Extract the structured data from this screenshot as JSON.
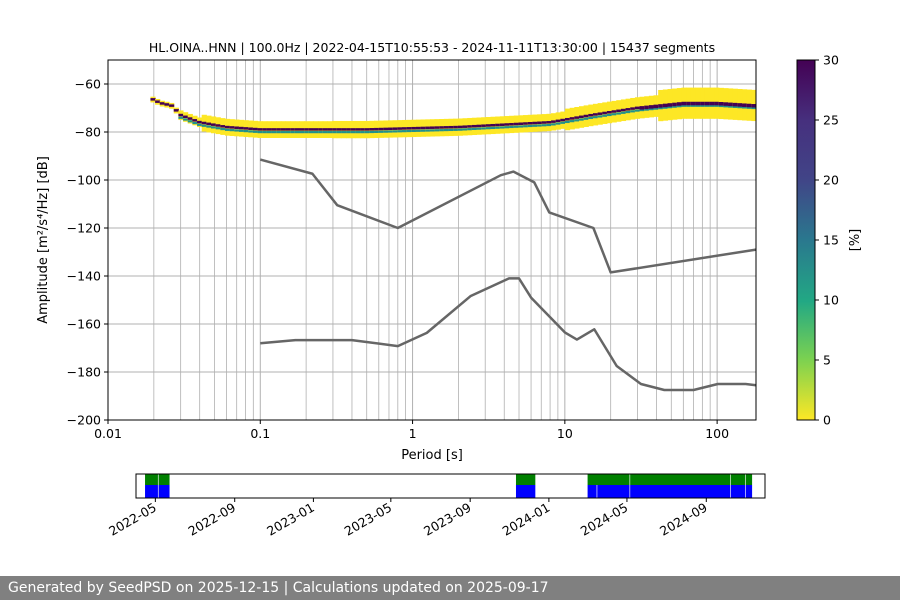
{
  "chart_data": [
    {
      "type": "heatmap",
      "title": "HL.OINA..HNN | 100.0Hz | 2022-04-15T10:55:53 - 2024-11-11T13:30:00 | 15437 segments",
      "xlabel": "Period [s]",
      "ylabel": "Amplitude [m²/s⁴/Hz] [dB]",
      "x_scale": "log",
      "xlim": [
        0.01,
        180
      ],
      "ylim": [
        -200,
        -50
      ],
      "x_tick_labels": [
        "0.01",
        "0.1",
        "1",
        "10",
        "100"
      ],
      "y_ticks": [
        -60,
        -80,
        -100,
        -120,
        -140,
        -160,
        -180,
        -200
      ],
      "y_tick_labels": [
        "−60",
        "−80",
        "−100",
        "−120",
        "−140",
        "−160",
        "−180",
        "−200"
      ],
      "grid": true,
      "colorbar": {
        "label": "[%]",
        "range": [
          0,
          30
        ],
        "ticks": [
          0,
          5,
          10,
          15,
          20,
          25,
          30
        ],
        "colormap": "viridis_r"
      },
      "psd_mode_curve": [
        {
          "period": 0.019,
          "db": -66
        },
        {
          "period": 0.022,
          "db": -68
        },
        {
          "period": 0.026,
          "db": -69
        },
        {
          "period": 0.03,
          "db": -73
        },
        {
          "period": 0.04,
          "db": -76
        },
        {
          "period": 0.06,
          "db": -78
        },
        {
          "period": 0.1,
          "db": -79
        },
        {
          "period": 0.2,
          "db": -79
        },
        {
          "period": 0.5,
          "db": -79
        },
        {
          "period": 1,
          "db": -78.5
        },
        {
          "period": 2,
          "db": -78
        },
        {
          "period": 4,
          "db": -77
        },
        {
          "period": 8,
          "db": -76
        },
        {
          "period": 15,
          "db": -73
        },
        {
          "period": 30,
          "db": -70
        },
        {
          "period": 60,
          "db": -68
        },
        {
          "period": 100,
          "db": -68
        },
        {
          "period": 180,
          "db": -69
        }
      ],
      "series": [
        {
          "x": [
            0.1,
            0.22,
            0.32,
            0.8,
            3.8,
            4.6,
            6.3,
            7.9,
            15.4,
            20,
            180
          ],
          "y": [
            -91.5,
            -97.4,
            -110.5,
            -120,
            -98,
            -96.5,
            -101,
            -113.5,
            -120,
            -138.5,
            -129
          ]
        },
        {
          "x": [
            0.1,
            0.17,
            0.4,
            0.8,
            1.24,
            2.4,
            4.3,
            5.0,
            6.0,
            10,
            12,
            15.6,
            21.9,
            31.6,
            45,
            70,
            101,
            154,
            180
          ],
          "y": [
            -168,
            -166.7,
            -166.7,
            -169.2,
            -163.7,
            -148.4,
            -141,
            -141,
            -149,
            -163.5,
            -166.5,
            -162.2,
            -177.5,
            -185,
            -187.5,
            -187.5,
            -185,
            -185,
            -185.5
          ]
        }
      ]
    },
    {
      "type": "timeline",
      "x_tick_labels": [
        "2022-05",
        "2022-09",
        "2023-01",
        "2023-05",
        "2023-09",
        "2024-01",
        "2024-05",
        "2024-09"
      ],
      "x_ticks": [
        "2022-05-01",
        "2022-09-01",
        "2023-01-01",
        "2023-05-01",
        "2023-09-01",
        "2024-01-01",
        "2024-05-01",
        "2024-09-01"
      ],
      "xlim": [
        "2022-04-01",
        "2024-12-01"
      ],
      "data_coverage": [
        [
          "2022-04-15",
          "2022-05-05"
        ],
        [
          "2022-05-06",
          "2022-05-23"
        ],
        [
          "2023-11-11",
          "2023-12-11"
        ],
        [
          "2024-03-01",
          "2024-05-05"
        ],
        [
          "2024-05-06",
          "2024-10-08"
        ],
        [
          "2024-10-09",
          "2024-10-31"
        ],
        [
          "2024-11-01",
          "2024-11-11"
        ]
      ],
      "processed_coverage": [
        [
          "2022-04-15",
          "2022-05-05"
        ],
        [
          "2022-05-06",
          "2022-05-23"
        ],
        [
          "2023-11-11",
          "2023-12-11"
        ],
        [
          "2024-03-01",
          "2024-03-15"
        ],
        [
          "2024-03-16",
          "2024-05-05"
        ],
        [
          "2024-05-06",
          "2024-10-08"
        ],
        [
          "2024-10-09",
          "2024-10-31"
        ],
        [
          "2024-11-01",
          "2024-11-11"
        ]
      ],
      "colors": {
        "data": "#008000",
        "processed": "#0000ff"
      }
    }
  ],
  "footer": {
    "text": "Generated by SeedPSD on 2025-12-15 | Calculations updated on 2025-09-17"
  }
}
